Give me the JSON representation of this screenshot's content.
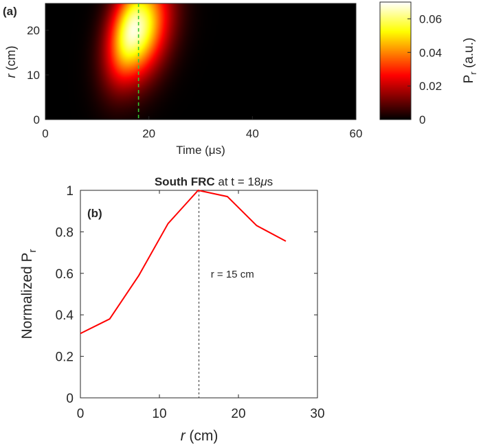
{
  "chart_data": [
    {
      "panel_label": "(a)",
      "type": "heatmap",
      "xlabel": "Time (μs)",
      "ylabel_italic": "r",
      "ylabel_rest": " (cm)",
      "xlim": [
        0,
        60
      ],
      "ylim": [
        0,
        26
      ],
      "xticks": [
        0,
        20,
        40,
        60
      ],
      "yticks": [
        0,
        10,
        20
      ],
      "colorbar": {
        "label_main": "P",
        "label_sub": "r",
        "label_rest": " (a.u.)",
        "range": [
          0,
          0.07
        ],
        "ticks": [
          0,
          0.02,
          0.04,
          0.06
        ],
        "tick_labels": [
          "0",
          "0.02",
          "0.04",
          "0.06"
        ],
        "colormap": "hot"
      },
      "marker_line": {
        "x": 18,
        "color": "#33cc33",
        "style": "dashed"
      },
      "field_description": {
        "peak_value": 0.068,
        "peak_time_top": 18,
        "peak_time_bottom": 14,
        "time_rise_width": 4.5,
        "time_decay_width": 6,
        "radial_half_width": 11,
        "radial_center": 20
      }
    },
    {
      "panel_label": "(b)",
      "type": "line",
      "title_bold": "South FRC",
      "title_rest": " at t = 18",
      "title_mu": "μ",
      "title_end": "s",
      "xlabel_italic": "r",
      "xlabel_rest": " (cm)",
      "ylabel_main": "Normalized P",
      "ylabel_sub": "r",
      "xlim": [
        0,
        30
      ],
      "ylim": [
        0,
        1
      ],
      "xticks": [
        0,
        10,
        20,
        30
      ],
      "yticks": [
        0,
        0.2,
        0.4,
        0.6,
        0.8,
        1
      ],
      "ytick_labels": [
        "0",
        "0.2",
        "0.4",
        "0.6",
        "0.8",
        "1"
      ],
      "series": [
        {
          "color": "#ff0000",
          "x": [
            0,
            3.7,
            7.4,
            11.1,
            14.9,
            18.6,
            22.3,
            26.0
          ],
          "y": [
            0.31,
            0.38,
            0.59,
            0.84,
            1.0,
            0.97,
            0.83,
            0.755
          ]
        }
      ],
      "vline": {
        "x": 15,
        "style": "dashed",
        "color": "#333333"
      },
      "annotation": {
        "text": "r = 15 cm",
        "x": 16.5,
        "y": 0.58
      }
    }
  ]
}
